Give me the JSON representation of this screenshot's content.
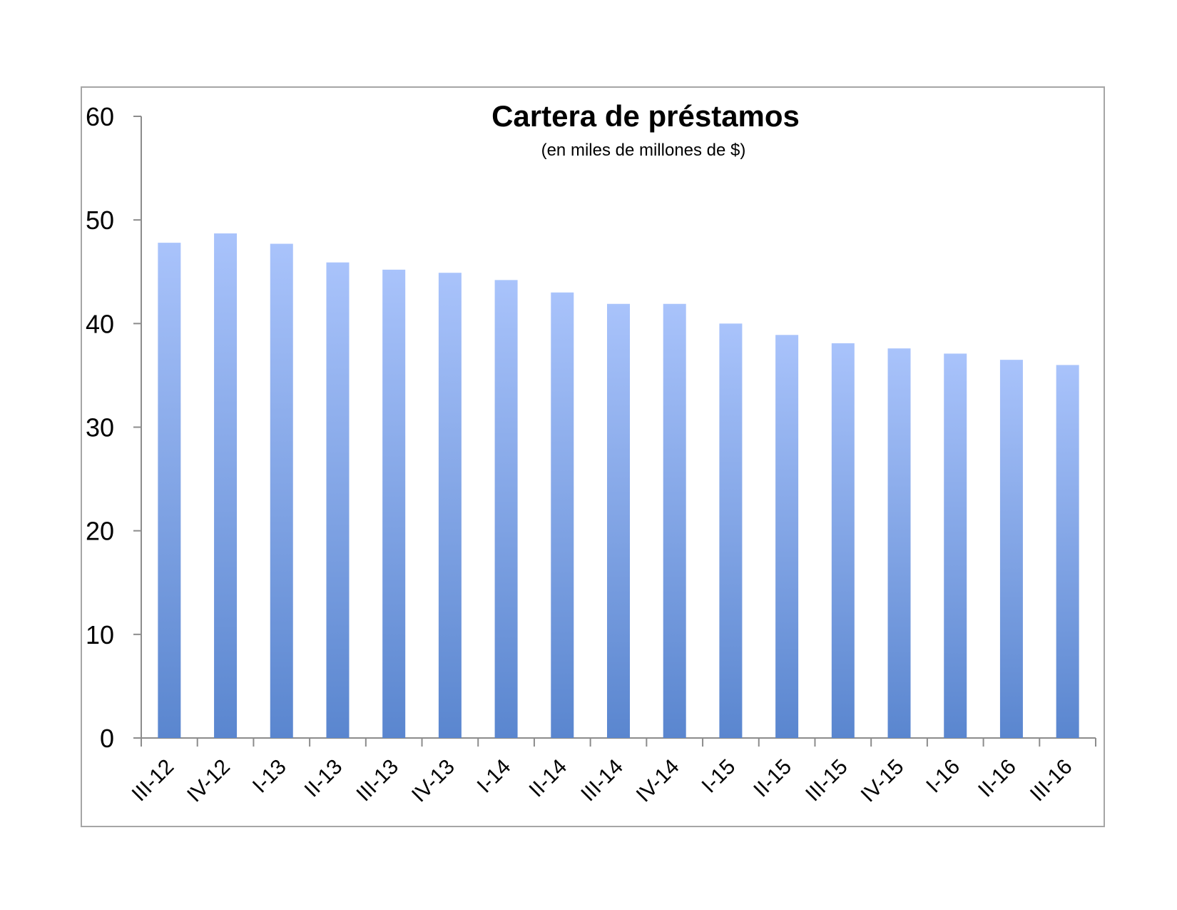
{
  "chart_data": {
    "type": "bar",
    "title": "Cartera de préstamos",
    "subtitle": "(en miles de millones de $)",
    "xlabel": "",
    "ylabel": "",
    "ylim": [
      0,
      60
    ],
    "yticks": [
      0,
      10,
      20,
      30,
      40,
      50,
      60
    ],
    "grid": false,
    "legend": "none",
    "categories": [
      "III-12",
      "IV-12",
      "I-13",
      "II-13",
      "III-13",
      "IV-13",
      "I-14",
      "II-14",
      "III-14",
      "IV-14",
      "I-15",
      "II-15",
      "III-15",
      "IV-15",
      "I-16",
      "II-16",
      "III-16"
    ],
    "values": [
      47.8,
      48.7,
      47.7,
      45.9,
      45.2,
      44.9,
      44.2,
      43.0,
      41.9,
      41.9,
      40.0,
      38.9,
      38.1,
      37.6,
      37.1,
      36.5,
      36.0
    ],
    "colors": {
      "bar_top": "#a9c3fb",
      "bar_bottom": "#5a86cf",
      "axis": "#8c8c8c",
      "frame": "#a6a6a6"
    }
  }
}
